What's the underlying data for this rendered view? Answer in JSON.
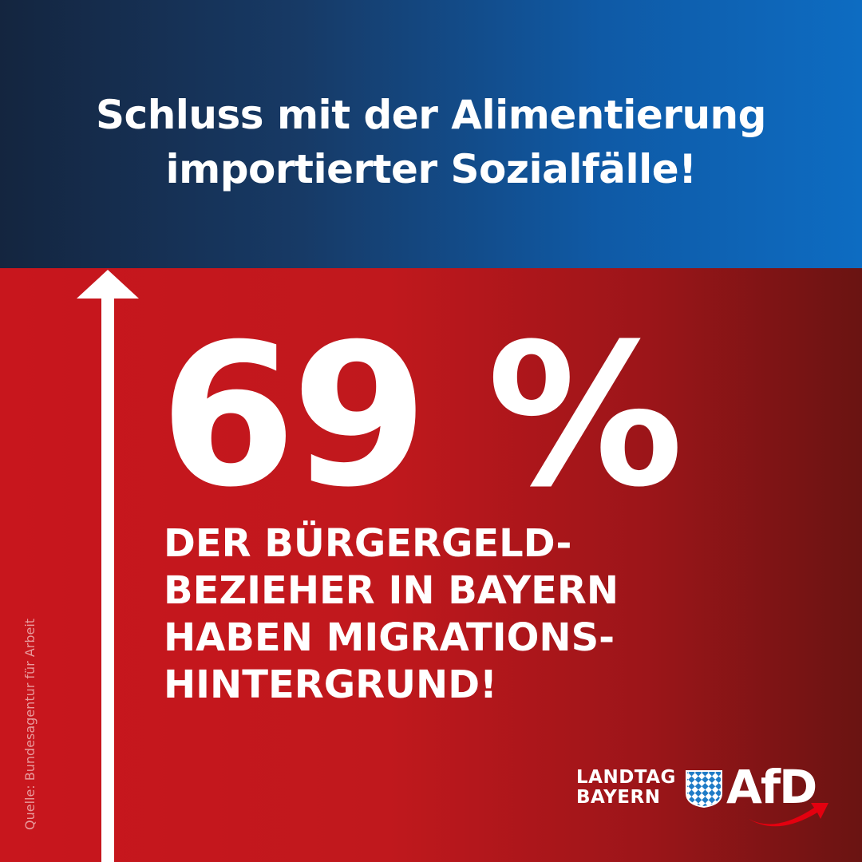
{
  "header": {
    "line1": "Schluss mit der Alimentierung",
    "line2": "importierter Sozialfälle!"
  },
  "main": {
    "figure": "69 %",
    "statement_lines": [
      "DER BÜRGERGELD-",
      "BEZIEHER IN BAYERN",
      "HABEN MIGRATIONS-",
      "HINTERGRUND!"
    ]
  },
  "source": "Quelle: Bundesagentur für Arbeit",
  "logo": {
    "landtag": "LANDTAG",
    "bayern": "BAYERN",
    "party": "AfD"
  },
  "icons": {
    "arrow": "up-arrow-icon",
    "flag": "bavaria-flag-icon",
    "swoosh": "afd-swoosh-icon"
  },
  "colors": {
    "blue_dark": "#14253f",
    "blue_light": "#0d6cc2",
    "red": "#c8161d",
    "red_dark": "#6a1412",
    "white": "#ffffff"
  }
}
